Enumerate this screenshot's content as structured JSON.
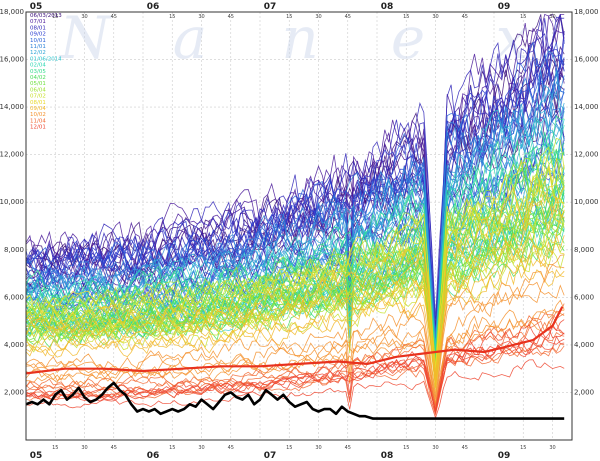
{
  "chart_data": {
    "type": "line",
    "title": "",
    "xlabel": "",
    "ylabel": "",
    "watermark": [
      "N",
      "a",
      "n",
      "e",
      "x"
    ],
    "x_range_minutes": [
      300,
      580
    ],
    "ylim": [
      0,
      18000
    ],
    "y_ticks": [
      "2,000",
      "4,000",
      "6,000",
      "8,000",
      "10,000",
      "12,000",
      "14,000",
      "16,000",
      "18,000"
    ],
    "y_tick_values": [
      2000,
      4000,
      6000,
      8000,
      10000,
      12000,
      14000,
      16000,
      18000
    ],
    "x_hour_ticks": [
      {
        "label": "05",
        "minute": 300
      },
      {
        "label": "06",
        "minute": 360
      },
      {
        "label": "07",
        "minute": 420
      },
      {
        "label": "08",
        "minute": 480
      },
      {
        "label": "09",
        "minute": 540
      }
    ],
    "x_minute_ticks": [
      "15",
      "30",
      "45"
    ],
    "grid": true,
    "legend_position": "top-left",
    "legend": [
      {
        "label": "06/03/2013",
        "color": "#3b0f7a"
      },
      {
        "label": "07/01",
        "color": "#4a1a9a"
      },
      {
        "label": "08/01",
        "color": "#3026b8"
      },
      {
        "label": "09/02",
        "color": "#2c3fcf"
      },
      {
        "label": "10/01",
        "color": "#2860d8"
      },
      {
        "label": "11/01",
        "color": "#2e82d8"
      },
      {
        "label": "12/02",
        "color": "#2fa6d6"
      },
      {
        "label": "01/06/2014",
        "color": "#2ec7cf"
      },
      {
        "label": "02/04",
        "color": "#2ed8b4"
      },
      {
        "label": "03/05",
        "color": "#33dc8c"
      },
      {
        "label": "04/02",
        "color": "#4ade5c"
      },
      {
        "label": "05/01",
        "color": "#6ee03e"
      },
      {
        "label": "06/04",
        "color": "#9ee234"
      },
      {
        "label": "07/02",
        "color": "#c8e02e"
      },
      {
        "label": "08/01",
        "color": "#e8d82a"
      },
      {
        "label": "09/04",
        "color": "#f2b82a"
      },
      {
        "label": "10/02",
        "color": "#f4922e"
      },
      {
        "label": "11/04",
        "color": "#f26a34"
      },
      {
        "label": "12/01",
        "color": "#ee4630"
      }
    ],
    "bands": [
      {
        "color": "#3b0f7a",
        "start": 7200,
        "end": 15500,
        "count": 6
      },
      {
        "color": "#4a1a9a",
        "start": 7000,
        "end": 15000,
        "count": 6
      },
      {
        "color": "#3026b8",
        "start": 6900,
        "end": 14500,
        "count": 6
      },
      {
        "color": "#2c3fcf",
        "start": 6600,
        "end": 14000,
        "count": 6
      },
      {
        "color": "#2860d8",
        "start": 6300,
        "end": 13500,
        "count": 6
      },
      {
        "color": "#2e82d8",
        "start": 6000,
        "end": 13000,
        "count": 6
      },
      {
        "color": "#2fa6d6",
        "start": 5800,
        "end": 12500,
        "count": 6
      },
      {
        "color": "#2ec7cf",
        "start": 5600,
        "end": 12000,
        "count": 6
      },
      {
        "color": "#2ed8b4",
        "start": 5500,
        "end": 11500,
        "count": 6
      },
      {
        "color": "#33dc8c",
        "start": 5400,
        "end": 11000,
        "count": 6
      },
      {
        "color": "#4ade5c",
        "start": 5300,
        "end": 10800,
        "count": 6
      },
      {
        "color": "#6ee03e",
        "start": 5200,
        "end": 10500,
        "count": 6
      },
      {
        "color": "#9ee234",
        "start": 5100,
        "end": 10200,
        "count": 6
      },
      {
        "color": "#c8e02e",
        "start": 5000,
        "end": 10000,
        "count": 6
      },
      {
        "color": "#e8d82a",
        "start": 4900,
        "end": 9800,
        "count": 6
      },
      {
        "color": "#f2b82a",
        "start": 4300,
        "end": 9000,
        "count": 6
      },
      {
        "color": "#f4922e",
        "start": 3000,
        "end": 6500,
        "count": 6
      },
      {
        "color": "#f26a34",
        "start": 2200,
        "end": 4800,
        "count": 6
      },
      {
        "color": "#ee4630",
        "start": 1800,
        "end": 4200,
        "count": 6
      }
    ],
    "highlight_series": [
      {
        "color": "#e8321e",
        "points": [
          [
            300,
            2800
          ],
          [
            320,
            3000
          ],
          [
            340,
            3000
          ],
          [
            360,
            2900
          ],
          [
            380,
            3000
          ],
          [
            400,
            3100
          ],
          [
            420,
            3100
          ],
          [
            440,
            3200
          ],
          [
            460,
            3300
          ],
          [
            475,
            3200
          ],
          [
            490,
            3500
          ],
          [
            510,
            3700
          ],
          [
            520,
            3800
          ],
          [
            535,
            3700
          ],
          [
            545,
            3900
          ],
          [
            560,
            4200
          ],
          [
            570,
            4800
          ],
          [
            575,
            5600
          ]
        ]
      },
      {
        "color": "#000000",
        "points": [
          [
            300,
            1500
          ],
          [
            303,
            1600
          ],
          [
            306,
            1500
          ],
          [
            309,
            1700
          ],
          [
            312,
            1500
          ],
          [
            315,
            1900
          ],
          [
            318,
            2100
          ],
          [
            321,
            1700
          ],
          [
            324,
            1900
          ],
          [
            327,
            2200
          ],
          [
            330,
            1800
          ],
          [
            333,
            1600
          ],
          [
            336,
            1700
          ],
          [
            339,
            1900
          ],
          [
            342,
            2200
          ],
          [
            345,
            2400
          ],
          [
            348,
            2100
          ],
          [
            351,
            1900
          ],
          [
            354,
            1500
          ],
          [
            357,
            1200
          ],
          [
            360,
            1300
          ],
          [
            363,
            1200
          ],
          [
            366,
            1300
          ],
          [
            369,
            1100
          ],
          [
            372,
            1200
          ],
          [
            375,
            1300
          ],
          [
            378,
            1200
          ],
          [
            381,
            1300
          ],
          [
            384,
            1500
          ],
          [
            387,
            1400
          ],
          [
            390,
            1700
          ],
          [
            393,
            1500
          ],
          [
            396,
            1300
          ],
          [
            399,
            1600
          ],
          [
            402,
            1900
          ],
          [
            405,
            2000
          ],
          [
            408,
            1800
          ],
          [
            411,
            1700
          ],
          [
            414,
            1900
          ],
          [
            417,
            1500
          ],
          [
            420,
            1700
          ],
          [
            423,
            2100
          ],
          [
            426,
            1900
          ],
          [
            429,
            1700
          ],
          [
            432,
            1900
          ],
          [
            435,
            1600
          ],
          [
            438,
            1400
          ],
          [
            441,
            1500
          ],
          [
            444,
            1600
          ],
          [
            447,
            1300
          ],
          [
            450,
            1200
          ],
          [
            453,
            1300
          ],
          [
            456,
            1300
          ],
          [
            459,
            1100
          ],
          [
            462,
            1400
          ],
          [
            465,
            1200
          ],
          [
            468,
            1100
          ],
          [
            471,
            1000
          ],
          [
            474,
            1000
          ],
          [
            478,
            900
          ],
          [
            490,
            900
          ],
          [
            520,
            900
          ],
          [
            550,
            900
          ],
          [
            576,
            900
          ]
        ]
      }
    ]
  }
}
